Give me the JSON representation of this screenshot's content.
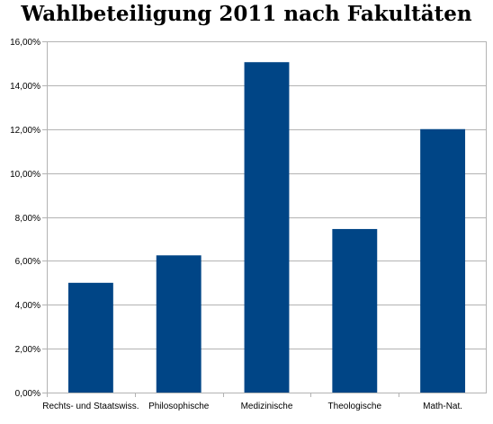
{
  "chart_data": {
    "type": "bar",
    "title": "Wahlbeteiligung 2011 nach Fakultäten",
    "xlabel": "",
    "ylabel": "",
    "categories": [
      "Rechts- und Staatswiss.",
      "Philosophische",
      "Medizinische",
      "Theologische",
      "Math-Nat."
    ],
    "values": [
      5.0,
      6.25,
      15.05,
      7.45,
      12.0
    ],
    "ylim": [
      0,
      16
    ],
    "yticks": [
      0,
      2,
      4,
      6,
      8,
      10,
      12,
      14,
      16
    ],
    "ytick_labels": [
      "0,00%",
      "2,00%",
      "4,00%",
      "6,00%",
      "8,00%",
      "10,00%",
      "12,00%",
      "14,00%",
      "16,00%"
    ],
    "grid": true,
    "legend": "none",
    "colors": {
      "bar": "#004586",
      "grid": "#b3b3b3",
      "axis": "#b3b3b3"
    }
  }
}
